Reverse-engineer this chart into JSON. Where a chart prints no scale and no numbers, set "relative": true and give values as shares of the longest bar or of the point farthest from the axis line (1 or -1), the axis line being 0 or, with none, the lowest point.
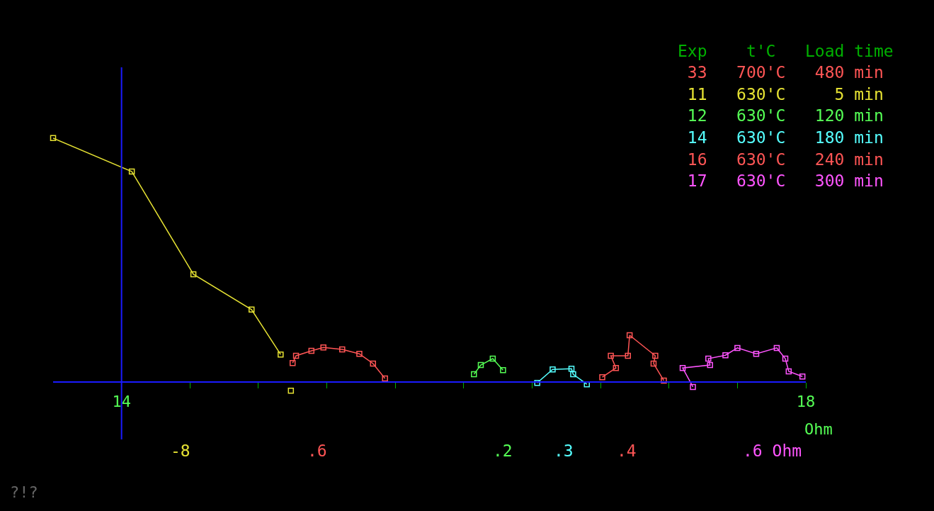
{
  "chart_data": {
    "type": "line",
    "relative": true,
    "marker": "square",
    "xlabel": "Ohm",
    "ref_lines": [
      {
        "axis": "x",
        "value": 14,
        "color": "#1a1aff"
      }
    ],
    "xlim": [
      13.6,
      18.0
    ],
    "xticks": [
      14,
      {
        "value": 14.4,
        "label": null
      },
      {
        "value": 14.8,
        "label": null
      },
      {
        "value": 15.2,
        "label": null
      },
      {
        "value": 15.6,
        "label": null
      },
      {
        "value": 16.0,
        "label": null
      },
      {
        "value": 16.4,
        "label": null
      },
      {
        "value": 16.8,
        "label": null
      },
      {
        "value": 17.2,
        "label": null
      },
      {
        "value": 17.6,
        "label": null
      },
      18
    ],
    "series": [
      {
        "color": "#e6e233",
        "x": [
          13.6,
          14.06,
          14.42,
          14.76,
          14.93
        ],
        "values": [
          1.0,
          0.863,
          0.442,
          0.297,
          0.113
        ]
      },
      {
        "color": "#e6e233",
        "type": "scatter",
        "x": [
          14.99
        ],
        "values": [
          -0.035
        ]
      },
      {
        "color": "#ff5555",
        "x": [
          15.0,
          15.02,
          15.11,
          15.18,
          15.29,
          15.39,
          15.47,
          15.54
        ],
        "values": [
          0.078,
          0.108,
          0.128,
          0.142,
          0.134,
          0.116,
          0.076,
          0.015
        ]
      },
      {
        "color": "#55ff55",
        "x": [
          16.06,
          16.1,
          16.17,
          16.23
        ],
        "values": [
          0.032,
          0.07,
          0.096,
          0.049
        ]
      },
      {
        "color": "#55ffff",
        "x": [
          16.43,
          16.52,
          16.63,
          16.64,
          16.72
        ],
        "values": [
          -0.003,
          0.052,
          0.055,
          0.032,
          -0.009
        ]
      },
      {
        "color": "#ff5555",
        "x": [
          16.81,
          16.89,
          16.86,
          16.96,
          16.97,
          17.12,
          17.11,
          17.17
        ],
        "values": [
          0.02,
          0.058,
          0.108,
          0.108,
          0.192,
          0.108,
          0.076,
          0.006
        ]
      },
      {
        "color": "#ff55ff",
        "x": [
          17.34,
          17.28,
          17.44,
          17.43,
          17.53,
          17.6,
          17.71,
          17.83,
          17.88,
          17.9,
          17.98
        ],
        "values": [
          -0.02,
          0.058,
          0.07,
          0.096,
          0.11,
          0.14,
          0.116,
          0.14,
          0.096,
          0.044,
          0.023
        ]
      }
    ],
    "annotations": [
      "Exp    t'C   Load time",
      " 33   700'C   480 min",
      " 11   630'C     5 min",
      " 12   630'C   120 min",
      " 14   630'C   180 min",
      " 16   630'C   240 min",
      " 17   630'C   300 min",
      "-8",
      ".6",
      ".2",
      ".3",
      ".4",
      ".6 Ohm",
      "?!?"
    ]
  }
}
